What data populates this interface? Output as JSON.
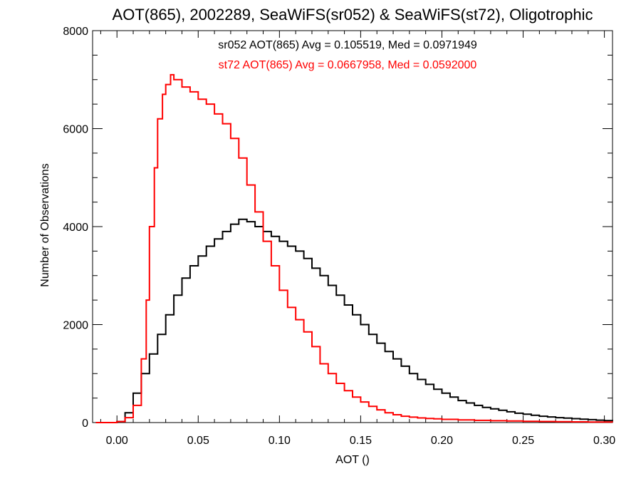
{
  "chart_data": {
    "type": "line",
    "title": "AOT(865), 2002289, SeaWiFS(sr052) & SeaWiFS(st72), Oligotrophic",
    "xlabel": "AOT ()",
    "ylabel": "Number of Observations",
    "xlim": [
      -0.015,
      0.305
    ],
    "ylim": [
      0,
      8000
    ],
    "xticks": [
      "0.00",
      "0.05",
      "0.10",
      "0.15",
      "0.20",
      "0.25",
      "0.30"
    ],
    "yticks": [
      "0",
      "2000",
      "4000",
      "6000",
      "8000"
    ],
    "grid": false,
    "legend_position": "top-center",
    "series": [
      {
        "name": "sr052",
        "legend_text": "sr052 AOT(865) Avg = 0.105519, Med = 0.0971949",
        "color": "#000000",
        "points": [
          [
            -0.013,
            0
          ],
          [
            0.0,
            20
          ],
          [
            0.005,
            200
          ],
          [
            0.01,
            600
          ],
          [
            0.015,
            1000
          ],
          [
            0.02,
            1400
          ],
          [
            0.025,
            1800
          ],
          [
            0.03,
            2200
          ],
          [
            0.035,
            2600
          ],
          [
            0.04,
            2950
          ],
          [
            0.045,
            3200
          ],
          [
            0.05,
            3400
          ],
          [
            0.055,
            3600
          ],
          [
            0.06,
            3750
          ],
          [
            0.065,
            3900
          ],
          [
            0.07,
            4050
          ],
          [
            0.075,
            4150
          ],
          [
            0.08,
            4100
          ],
          [
            0.085,
            4000
          ],
          [
            0.09,
            3900
          ],
          [
            0.095,
            3800
          ],
          [
            0.1,
            3700
          ],
          [
            0.105,
            3600
          ],
          [
            0.11,
            3500
          ],
          [
            0.115,
            3350
          ],
          [
            0.12,
            3150
          ],
          [
            0.125,
            3000
          ],
          [
            0.13,
            2800
          ],
          [
            0.135,
            2600
          ],
          [
            0.14,
            2400
          ],
          [
            0.145,
            2200
          ],
          [
            0.15,
            2000
          ],
          [
            0.155,
            1800
          ],
          [
            0.16,
            1620
          ],
          [
            0.165,
            1450
          ],
          [
            0.17,
            1300
          ],
          [
            0.175,
            1150
          ],
          [
            0.18,
            1000
          ],
          [
            0.185,
            880
          ],
          [
            0.19,
            780
          ],
          [
            0.195,
            680
          ],
          [
            0.2,
            600
          ],
          [
            0.205,
            520
          ],
          [
            0.21,
            450
          ],
          [
            0.215,
            400
          ],
          [
            0.22,
            350
          ],
          [
            0.225,
            310
          ],
          [
            0.23,
            280
          ],
          [
            0.235,
            250
          ],
          [
            0.24,
            220
          ],
          [
            0.245,
            190
          ],
          [
            0.25,
            170
          ],
          [
            0.255,
            150
          ],
          [
            0.26,
            130
          ],
          [
            0.265,
            115
          ],
          [
            0.27,
            100
          ],
          [
            0.275,
            90
          ],
          [
            0.28,
            80
          ],
          [
            0.285,
            70
          ],
          [
            0.29,
            60
          ],
          [
            0.295,
            50
          ],
          [
            0.3,
            40
          ],
          [
            0.305,
            35
          ]
        ]
      },
      {
        "name": "st72",
        "legend_text": "st72 AOT(865) Avg = 0.0667958, Med = 0.0592000",
        "color": "#ff0000",
        "points": [
          [
            -0.013,
            0
          ],
          [
            0.0,
            20
          ],
          [
            0.005,
            100
          ],
          [
            0.01,
            350
          ],
          [
            0.015,
            1300
          ],
          [
            0.018,
            2500
          ],
          [
            0.02,
            4000
          ],
          [
            0.023,
            5200
          ],
          [
            0.025,
            6200
          ],
          [
            0.028,
            6700
          ],
          [
            0.03,
            6900
          ],
          [
            0.033,
            7100
          ],
          [
            0.035,
            7000
          ],
          [
            0.04,
            6850
          ],
          [
            0.045,
            6750
          ],
          [
            0.05,
            6600
          ],
          [
            0.055,
            6500
          ],
          [
            0.06,
            6300
          ],
          [
            0.065,
            6100
          ],
          [
            0.07,
            5800
          ],
          [
            0.075,
            5400
          ],
          [
            0.08,
            4850
          ],
          [
            0.085,
            4300
          ],
          [
            0.09,
            3700
          ],
          [
            0.095,
            3200
          ],
          [
            0.1,
            2700
          ],
          [
            0.105,
            2350
          ],
          [
            0.11,
            2100
          ],
          [
            0.115,
            1850
          ],
          [
            0.12,
            1550
          ],
          [
            0.125,
            1200
          ],
          [
            0.13,
            1000
          ],
          [
            0.135,
            800
          ],
          [
            0.14,
            650
          ],
          [
            0.145,
            520
          ],
          [
            0.15,
            420
          ],
          [
            0.155,
            330
          ],
          [
            0.16,
            260
          ],
          [
            0.165,
            200
          ],
          [
            0.17,
            160
          ],
          [
            0.175,
            130
          ],
          [
            0.18,
            110
          ],
          [
            0.185,
            95
          ],
          [
            0.19,
            85
          ],
          [
            0.195,
            75
          ],
          [
            0.2,
            65
          ],
          [
            0.21,
            55
          ],
          [
            0.22,
            45
          ],
          [
            0.23,
            38
          ],
          [
            0.24,
            32
          ],
          [
            0.25,
            26
          ],
          [
            0.26,
            22
          ],
          [
            0.27,
            18
          ],
          [
            0.28,
            15
          ],
          [
            0.29,
            12
          ],
          [
            0.3,
            10
          ],
          [
            0.305,
            8
          ]
        ]
      }
    ]
  }
}
